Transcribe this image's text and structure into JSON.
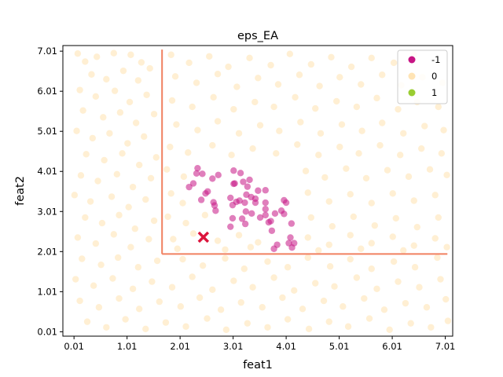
{
  "chart_data": {
    "type": "scatter",
    "title": "eps_EA",
    "xlabel": "feat1",
    "ylabel": "feat2",
    "xlim": [
      -0.2,
      7.15
    ],
    "ylim": [
      -0.1,
      7.15
    ],
    "xticks": [
      0.01,
      1.01,
      2.01,
      3.01,
      4.01,
      5.01,
      6.01,
      7.01
    ],
    "yticks": [
      0.01,
      1.01,
      2.01,
      3.01,
      4.01,
      5.01,
      6.01,
      7.01
    ],
    "tick_labels": [
      "0.01",
      "1.01",
      "2.01",
      "3.01",
      "4.01",
      "5.01",
      "6.01",
      "7.01"
    ],
    "legend": {
      "placement": "top-right",
      "entries": [
        {
          "label": "-1",
          "color": "#c71585"
        },
        {
          "label": "0",
          "color": "#ffe4b5"
        },
        {
          "label": "1",
          "color": "#9acd32"
        }
      ]
    },
    "threshold_lines": {
      "color": "#f08060",
      "vertical": {
        "x": 1.67,
        "y_from": 1.95,
        "y_to": 7.05
      },
      "horizontal": {
        "y": 1.95,
        "x_from": 1.67,
        "x_to": 7.05
      }
    },
    "marker": {
      "x": 2.45,
      "y": 2.37,
      "color": "#dc143c",
      "shape": "x"
    },
    "series": [
      {
        "name": "-1",
        "color": "#c71585",
        "points": [
          [
            2.34,
            4.09
          ],
          [
            2.32,
            3.96
          ],
          [
            2.43,
            3.95
          ],
          [
            2.18,
            3.62
          ],
          [
            2.26,
            3.71
          ],
          [
            2.49,
            3.46
          ],
          [
            2.53,
            3.51
          ],
          [
            2.62,
            3.83
          ],
          [
            2.73,
            3.92
          ],
          [
            2.41,
            3.3
          ],
          [
            2.64,
            3.24
          ],
          [
            2.66,
            3.16
          ],
          [
            2.68,
            3.03
          ],
          [
            3.02,
            4.03
          ],
          [
            3.15,
            3.97
          ],
          [
            3.02,
            3.7
          ],
          [
            3.04,
            3.71
          ],
          [
            3.2,
            3.75
          ],
          [
            3.32,
            3.8
          ],
          [
            3.28,
            3.63
          ],
          [
            3.48,
            3.53
          ],
          [
            3.62,
            3.54
          ],
          [
            3.26,
            3.43
          ],
          [
            3.35,
            3.37
          ],
          [
            3.43,
            3.33
          ],
          [
            2.96,
            3.35
          ],
          [
            3.07,
            3.25
          ],
          [
            3.23,
            3.23
          ],
          [
            3.43,
            3.23
          ],
          [
            3.0,
            3.17
          ],
          [
            3.13,
            3.28
          ],
          [
            3.62,
            3.23
          ],
          [
            3.62,
            3.07
          ],
          [
            3.97,
            3.29
          ],
          [
            4.01,
            3.23
          ],
          [
            3.25,
            3.01
          ],
          [
            3.36,
            2.96
          ],
          [
            3.52,
            2.86
          ],
          [
            3.62,
            2.92
          ],
          [
            3.8,
            2.96
          ],
          [
            3.92,
            3.03
          ],
          [
            3.97,
            2.95
          ],
          [
            3.0,
            2.84
          ],
          [
            3.24,
            2.7
          ],
          [
            3.18,
            2.83
          ],
          [
            3.72,
            2.77
          ],
          [
            3.68,
            2.74
          ],
          [
            2.96,
            2.63
          ],
          [
            4.11,
            2.71
          ],
          [
            3.74,
            2.53
          ],
          [
            4.09,
            2.36
          ],
          [
            4.06,
            2.22
          ],
          [
            4.16,
            2.22
          ],
          [
            3.84,
            2.18
          ],
          [
            3.78,
            2.08
          ],
          [
            4.12,
            2.11
          ]
        ]
      },
      {
        "name": "0",
        "color": "#ffe4b5",
        "points": [
          [
            0.08,
            6.95
          ],
          [
            0.22,
            6.75
          ],
          [
            0.44,
            6.87
          ],
          [
            0.76,
            6.96
          ],
          [
            1.08,
            6.92
          ],
          [
            1.28,
            6.73
          ],
          [
            0.34,
            6.43
          ],
          [
            0.62,
            6.31
          ],
          [
            0.94,
            6.52
          ],
          [
            1.22,
            6.28
          ],
          [
            1.44,
            6.58
          ],
          [
            0.12,
            6.04
          ],
          [
            0.42,
            5.88
          ],
          [
            0.78,
            6.02
          ],
          [
            1.06,
            5.74
          ],
          [
            1.38,
            5.92
          ],
          [
            0.18,
            5.53
          ],
          [
            0.56,
            5.36
          ],
          [
            0.88,
            5.48
          ],
          [
            1.18,
            5.22
          ],
          [
            1.52,
            5.44
          ],
          [
            0.06,
            5.02
          ],
          [
            0.36,
            4.84
          ],
          [
            0.68,
            4.96
          ],
          [
            1.02,
            4.71
          ],
          [
            1.33,
            4.88
          ],
          [
            0.24,
            4.44
          ],
          [
            0.58,
            4.29
          ],
          [
            0.92,
            4.46
          ],
          [
            1.24,
            4.17
          ],
          [
            1.56,
            4.36
          ],
          [
            0.14,
            3.91
          ],
          [
            0.46,
            3.77
          ],
          [
            0.82,
            3.94
          ],
          [
            1.12,
            3.62
          ],
          [
            1.46,
            3.84
          ],
          [
            0.02,
            3.42
          ],
          [
            0.32,
            3.26
          ],
          [
            0.72,
            3.38
          ],
          [
            1.04,
            3.12
          ],
          [
            1.36,
            3.31
          ],
          [
            0.22,
            2.86
          ],
          [
            0.54,
            2.72
          ],
          [
            0.86,
            2.92
          ],
          [
            1.16,
            2.58
          ],
          [
            1.52,
            2.78
          ],
          [
            0.08,
            2.36
          ],
          [
            0.42,
            2.21
          ],
          [
            0.76,
            2.44
          ],
          [
            1.08,
            2.12
          ],
          [
            1.42,
            2.32
          ],
          [
            0.16,
            1.83
          ],
          [
            0.52,
            1.68
          ],
          [
            0.84,
            1.86
          ],
          [
            1.22,
            1.62
          ],
          [
            1.58,
            1.78
          ],
          [
            2.06,
            1.82
          ],
          [
            2.44,
            1.66
          ],
          [
            2.86,
            1.84
          ],
          [
            3.22,
            1.58
          ],
          [
            3.66,
            1.76
          ],
          [
            4.04,
            1.62
          ],
          [
            4.42,
            1.86
          ],
          [
            4.84,
            1.64
          ],
          [
            5.22,
            1.82
          ],
          [
            5.62,
            1.58
          ],
          [
            6.04,
            1.76
          ],
          [
            6.44,
            1.62
          ],
          [
            6.86,
            1.86
          ],
          [
            0.04,
            1.32
          ],
          [
            0.38,
            1.16
          ],
          [
            0.74,
            1.34
          ],
          [
            1.12,
            1.08
          ],
          [
            1.48,
            1.26
          ],
          [
            1.86,
            1.12
          ],
          [
            2.24,
            1.38
          ],
          [
            2.62,
            1.06
          ],
          [
            3.02,
            1.28
          ],
          [
            3.38,
            1.12
          ],
          [
            3.78,
            1.36
          ],
          [
            4.16,
            1.04
          ],
          [
            4.56,
            1.22
          ],
          [
            4.92,
            1.14
          ],
          [
            5.34,
            1.36
          ],
          [
            5.72,
            1.08
          ],
          [
            6.12,
            1.26
          ],
          [
            6.52,
            1.12
          ],
          [
            6.92,
            1.32
          ],
          [
            0.12,
            0.78
          ],
          [
            0.48,
            0.62
          ],
          [
            0.86,
            0.84
          ],
          [
            1.24,
            0.58
          ],
          [
            1.62,
            0.76
          ],
          [
            2.02,
            0.64
          ],
          [
            2.38,
            0.86
          ],
          [
            2.78,
            0.56
          ],
          [
            3.16,
            0.74
          ],
          [
            3.56,
            0.62
          ],
          [
            3.94,
            0.86
          ],
          [
            4.32,
            0.58
          ],
          [
            4.72,
            0.78
          ],
          [
            5.08,
            0.64
          ],
          [
            5.48,
            0.84
          ],
          [
            5.86,
            0.56
          ],
          [
            6.26,
            0.72
          ],
          [
            6.66,
            0.62
          ],
          [
            7.02,
            0.82
          ],
          [
            0.26,
            0.26
          ],
          [
            0.62,
            0.12
          ],
          [
            0.98,
            0.32
          ],
          [
            1.36,
            0.08
          ],
          [
            1.74,
            0.24
          ],
          [
            2.12,
            0.14
          ],
          [
            2.52,
            0.34
          ],
          [
            2.88,
            0.06
          ],
          [
            3.28,
            0.22
          ],
          [
            3.66,
            0.12
          ],
          [
            4.04,
            0.32
          ],
          [
            4.44,
            0.08
          ],
          [
            4.82,
            0.26
          ],
          [
            5.18,
            0.14
          ],
          [
            5.58,
            0.34
          ],
          [
            5.96,
            0.06
          ],
          [
            6.36,
            0.22
          ],
          [
            6.74,
            0.12
          ],
          [
            7.06,
            0.28
          ],
          [
            1.84,
            6.92
          ],
          [
            2.18,
            6.72
          ],
          [
            2.56,
            6.88
          ],
          [
            2.92,
            6.62
          ],
          [
            3.32,
            6.84
          ],
          [
            3.72,
            6.66
          ],
          [
            4.08,
            6.94
          ],
          [
            4.48,
            6.68
          ],
          [
            4.86,
            6.86
          ],
          [
            5.24,
            6.62
          ],
          [
            5.62,
            6.84
          ],
          [
            6.04,
            6.72
          ],
          [
            6.42,
            6.92
          ],
          [
            1.92,
            6.38
          ],
          [
            2.32,
            6.22
          ],
          [
            2.72,
            6.44
          ],
          [
            3.08,
            6.12
          ],
          [
            3.48,
            6.34
          ],
          [
            3.86,
            6.18
          ],
          [
            4.26,
            6.42
          ],
          [
            4.64,
            6.14
          ],
          [
            5.02,
            6.36
          ],
          [
            5.42,
            6.18
          ],
          [
            5.82,
            6.42
          ],
          [
            6.18,
            6.16
          ],
          [
            6.58,
            6.36
          ],
          [
            6.96,
            6.22
          ],
          [
            1.86,
            5.78
          ],
          [
            2.24,
            5.62
          ],
          [
            2.64,
            5.86
          ],
          [
            3.02,
            5.56
          ],
          [
            3.42,
            5.74
          ],
          [
            3.78,
            5.62
          ],
          [
            4.18,
            5.86
          ],
          [
            4.56,
            5.58
          ],
          [
            4.96,
            5.76
          ],
          [
            5.34,
            5.62
          ],
          [
            5.72,
            5.84
          ],
          [
            6.12,
            5.56
          ],
          [
            6.48,
            5.74
          ],
          [
            6.88,
            5.62
          ],
          [
            1.94,
            5.18
          ],
          [
            2.34,
            5.04
          ],
          [
            2.72,
            5.26
          ],
          [
            3.12,
            4.96
          ],
          [
            3.52,
            5.16
          ],
          [
            3.88,
            5.02
          ],
          [
            4.28,
            5.24
          ],
          [
            4.66,
            4.96
          ],
          [
            5.06,
            5.18
          ],
          [
            5.44,
            5.02
          ],
          [
            5.82,
            5.22
          ],
          [
            6.22,
            4.96
          ],
          [
            6.62,
            5.14
          ],
          [
            6.98,
            5.04
          ],
          [
            1.82,
            4.62
          ],
          [
            2.16,
            4.48
          ],
          [
            2.62,
            4.66
          ],
          [
            2.98,
            4.42
          ],
          [
            3.38,
            4.58
          ],
          [
            3.82,
            4.46
          ],
          [
            4.22,
            4.68
          ],
          [
            4.62,
            4.42
          ],
          [
            5.02,
            4.62
          ],
          [
            5.38,
            4.46
          ],
          [
            5.78,
            4.66
          ],
          [
            6.16,
            4.42
          ],
          [
            6.56,
            4.58
          ],
          [
            6.94,
            4.46
          ],
          [
            1.76,
            4.06
          ],
          [
            2.08,
            3.88
          ],
          [
            4.38,
            4.02
          ],
          [
            4.74,
            3.86
          ],
          [
            5.14,
            4.08
          ],
          [
            5.52,
            3.84
          ],
          [
            5.92,
            4.04
          ],
          [
            6.32,
            3.88
          ],
          [
            6.72,
            4.06
          ],
          [
            7.04,
            3.92
          ],
          [
            1.84,
            3.46
          ],
          [
            2.06,
            3.22
          ],
          [
            4.42,
            3.48
          ],
          [
            4.82,
            3.26
          ],
          [
            5.22,
            3.44
          ],
          [
            5.62,
            3.22
          ],
          [
            6.02,
            3.46
          ],
          [
            6.42,
            3.28
          ],
          [
            6.82,
            3.42
          ],
          [
            1.78,
            2.88
          ],
          [
            2.12,
            2.72
          ],
          [
            2.48,
            2.92
          ],
          [
            4.48,
            2.86
          ],
          [
            4.88,
            2.64
          ],
          [
            5.28,
            2.88
          ],
          [
            5.68,
            2.66
          ],
          [
            6.08,
            2.84
          ],
          [
            6.48,
            2.62
          ],
          [
            6.88,
            2.86
          ],
          [
            1.88,
            2.32
          ],
          [
            2.26,
            2.46
          ],
          [
            2.72,
            2.28
          ],
          [
            3.12,
            2.42
          ],
          [
            3.48,
            2.24
          ],
          [
            4.42,
            2.36
          ],
          [
            4.82,
            2.18
          ],
          [
            5.22,
            2.42
          ],
          [
            5.62,
            2.22
          ],
          [
            6.02,
            2.38
          ],
          [
            6.42,
            2.16
          ],
          [
            6.82,
            2.34
          ],
          [
            7.04,
            2.12
          ],
          [
            1.96,
            2.08
          ],
          [
            2.86,
            2.06
          ],
          [
            3.34,
            2.12
          ],
          [
            4.62,
            2.04
          ],
          [
            5.42,
            2.08
          ],
          [
            6.22,
            2.04
          ]
        ]
      }
    ]
  }
}
